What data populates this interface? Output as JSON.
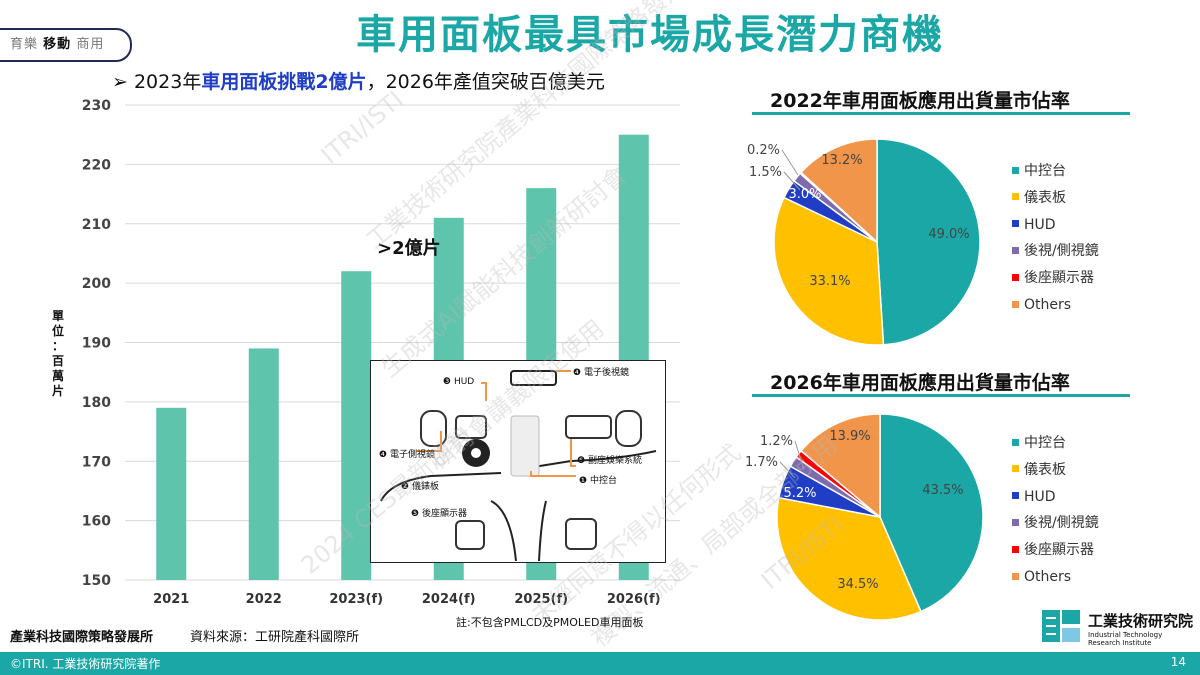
{
  "badge": {
    "left": "育樂",
    "mid": "移動",
    "right": "商用"
  },
  "title": "車用面板最具市場成長潛力商機",
  "subtitle": {
    "bullet": "➢",
    "p1": "2023年",
    "p2": "車用面板挑戰2億片",
    "p3": "，2026年產值突破百億美元"
  },
  "chart_data": [
    {
      "type": "bar",
      "categories": [
        "2021",
        "2022",
        "2023(f)",
        "2024(f)",
        "2025(f)",
        "2026(f)"
      ],
      "values": [
        179,
        189,
        202,
        211,
        216,
        225
      ],
      "ylim": [
        150,
        230
      ],
      "yticks": [
        "150",
        "160",
        "170",
        "180",
        "190",
        "200",
        "210",
        "220",
        "230"
      ],
      "ylabel": "單位：百萬片",
      "annotation": ">2億片",
      "color": "#5ec4ab"
    },
    {
      "type": "pie",
      "title": "2022年車用面板應用出貨量市佔率",
      "labels": [
        "中控台",
        "儀表板",
        "HUD",
        "後視/側視鏡",
        "後座顯示器",
        "Others"
      ],
      "values": [
        49.0,
        33.1,
        3.0,
        1.5,
        0.2,
        13.2
      ],
      "value_labels": [
        "49.0%",
        "33.1%",
        "3.0%",
        "1.5%",
        "0.2%",
        "13.2%"
      ]
    },
    {
      "type": "pie",
      "title": "2026年車用面板應用出貨量市佔率",
      "labels": [
        "中控台",
        "儀表板",
        "HUD",
        "後視/側視鏡",
        "後座顯示器",
        "Others"
      ],
      "values": [
        43.5,
        34.5,
        5.2,
        1.7,
        1.2,
        13.9
      ],
      "value_labels": [
        "43.5%",
        "34.5%",
        "5.2%",
        "1.7%",
        "1.2%",
        "13.9%"
      ]
    }
  ],
  "pie_colors": [
    "#1aa7a6",
    "#ffc000",
    "#1f3ec5",
    "#7d6bb0",
    "#ff0000",
    "#f0954a"
  ],
  "inset": {
    "hud": "HUD",
    "mirror": "電子後視鏡",
    "side": "電子側視鏡",
    "cluster": "儀錶板",
    "rear": "後座顯示器",
    "info": "副座娛樂系統",
    "center": "中控台",
    "n1": "❶",
    "n2": "❷",
    "n3": "❸",
    "n4": "❹",
    "n5": "❺",
    "n6": "❻"
  },
  "note": "註:不包含PMLCD及PMOLED車用面板",
  "org": "產業科技國際策略發展所",
  "source": "資料來源：工研院產科國際所",
  "watermark": [
    "ITRI/ISTI",
    "工業技術研究院產業科技國際策略發展所",
    "生成式AI賦能科技創新研討會",
    "研討會講義限定使用",
    "2024 CES最新趨勢",
    "未經同意不得以任何形式",
    "複製、流通、局部或全部引用"
  ],
  "logo": {
    "name": "工業技術研究院",
    "en1": "Industrial Technology",
    "en2": "Research Institute"
  },
  "footer": {
    "copy": "©ITRI. 工業技術研究院著作",
    "page": "14"
  }
}
